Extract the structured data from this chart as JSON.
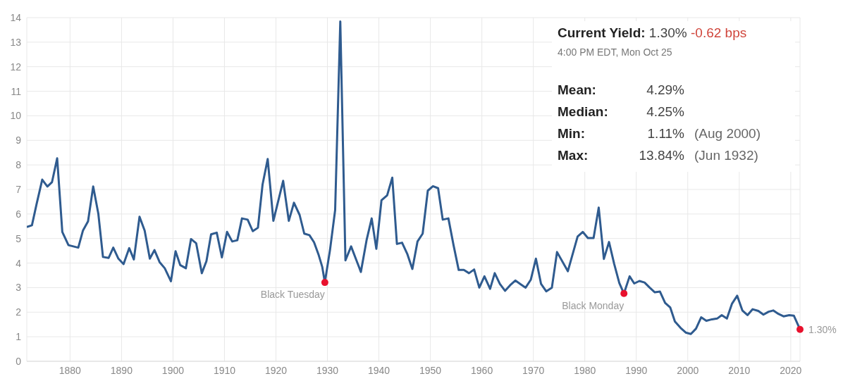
{
  "chart_data": {
    "type": "line",
    "x": [
      1871.6,
      1872.6,
      1873.5,
      1874.6,
      1875.6,
      1876.5,
      1877.5,
      1878.5,
      1879.7,
      1881.6,
      1882.5,
      1883.5,
      1884.5,
      1885.5,
      1886.4,
      1887.5,
      1888.4,
      1889.4,
      1890.4,
      1891.5,
      1892.4,
      1893.5,
      1894.5,
      1895.5,
      1896.4,
      1897.4,
      1898.4,
      1899.6,
      1900.5,
      1901.4,
      1902.5,
      1903.5,
      1904.5,
      1905.6,
      1906.5,
      1907.4,
      1908.5,
      1909.5,
      1910.5,
      1911.5,
      1912.5,
      1913.4,
      1914.5,
      1915.5,
      1916.5,
      1917.4,
      1918.4,
      1919.5,
      1921.4,
      1922.5,
      1923.5,
      1924.6,
      1925.5,
      1926.5,
      1927.4,
      1928.3,
      1929,
      1929.5,
      1930.5,
      1931.5,
      1932.5,
      1933.5,
      1934.6,
      1935.6,
      1936.5,
      1937.6,
      1938.6,
      1939.5,
      1940.5,
      1941.6,
      1942.6,
      1943.5,
      1944.5,
      1945.5,
      1946.5,
      1947.5,
      1948.5,
      1949.5,
      1950.5,
      1951.5,
      1952.4,
      1953.5,
      1954.5,
      1955.5,
      1956.5,
      1957.5,
      1958.5,
      1959.5,
      1960.5,
      1961.6,
      1962.5,
      1963.5,
      1964.5,
      1965.5,
      1966.5,
      1967.6,
      1968.5,
      1969.5,
      1970.5,
      1971.5,
      1972.5,
      1973.6,
      1974.6,
      1976.7,
      1978.6,
      1979.6,
      1980.6,
      1981.7,
      1982.7,
      1983.7,
      1984.7,
      1985.7,
      1986.7,
      1987.6,
      1988.7,
      1989.6,
      1990.6,
      1991.6,
      1992.6,
      1993.6,
      1994.6,
      1995.6,
      1996.6,
      1997.5,
      1998.6,
      1999.6,
      2000.6,
      2001.6,
      2002.6,
      2003.6,
      2004.7,
      2005.7,
      2006.6,
      2007.6,
      2008.6,
      2009.6,
      2010.6,
      2011.6,
      2012.6,
      2013.7,
      2014.7,
      2015.7,
      2016.6,
      2017.6,
      2018.6,
      2019.7,
      2020.6,
      2021.8
    ],
    "series": [
      {
        "color": "#2f5b8f",
        "values": [
          5.47,
          5.54,
          6.4,
          7.4,
          7.12,
          7.3,
          8.27,
          5.27,
          4.73,
          4.63,
          5.32,
          5.7,
          7.12,
          6.01,
          4.25,
          4.21,
          4.63,
          4.18,
          3.96,
          4.61,
          4.15,
          5.89,
          5.32,
          4.18,
          4.53,
          4.04,
          3.79,
          3.26,
          4.48,
          3.92,
          3.79,
          4.98,
          4.81,
          3.59,
          4.08,
          5.17,
          5.24,
          4.23,
          5.27,
          4.88,
          4.93,
          5.82,
          5.77,
          5.3,
          5.44,
          7.2,
          8.24,
          5.72,
          7.35,
          5.72,
          6.46,
          5.96,
          5.2,
          5.14,
          4.85,
          4.33,
          3.84,
          3.21,
          4.53,
          6.16,
          13.84,
          4.11,
          4.68,
          4.13,
          3.64,
          4.93,
          5.82,
          4.58,
          6.56,
          6.76,
          7.48,
          4.78,
          4.83,
          4.38,
          3.76,
          4.88,
          5.2,
          6.95,
          7.13,
          7.05,
          5.77,
          5.82,
          4.73,
          3.72,
          3.72,
          3.59,
          3.74,
          3.0,
          3.46,
          2.95,
          3.59,
          3.15,
          2.87,
          3.1,
          3.29,
          3.13,
          3.0,
          3.32,
          4.18,
          3.15,
          2.85,
          3.0,
          4.45,
          3.67,
          5.08,
          5.27,
          5.02,
          5.02,
          6.26,
          4.17,
          4.86,
          3.97,
          3.19,
          2.76,
          3.46,
          3.17,
          3.27,
          3.21,
          3.0,
          2.81,
          2.84,
          2.38,
          2.19,
          1.62,
          1.36,
          1.17,
          1.11,
          1.33,
          1.79,
          1.65,
          1.71,
          1.74,
          1.88,
          1.74,
          2.35,
          2.67,
          2.07,
          1.88,
          2.12,
          2.05,
          1.9,
          2.02,
          2.07,
          1.93,
          1.83,
          1.88,
          1.86,
          1.3
        ]
      }
    ],
    "xlim": [
      1871.6,
      2021.8
    ],
    "xticks": [
      1880,
      1890,
      1900,
      1910,
      1920,
      1930,
      1940,
      1950,
      1960,
      1970,
      1980,
      1990,
      2000,
      2010,
      2020
    ],
    "ylim": [
      0,
      14
    ],
    "yticks": [
      0,
      1,
      2,
      3,
      4,
      5,
      6,
      7,
      8,
      9,
      10,
      11,
      12,
      13,
      14
    ],
    "grid": true,
    "annotations": [
      "Current Yield: 1.30% -0.62 bps",
      "4:00 PM EDT, Mon Oct 25",
      "Mean: 4.29%",
      "Median: 4.25%",
      "Min: 1.11% (Aug 2000)",
      "Max: 13.84% (Jun 1932)",
      {
        "text": "Black Tuesday",
        "x": 1929.5,
        "y": 3.21
      },
      {
        "text": "Black Monday",
        "x": 1987.6,
        "y": 2.76
      },
      {
        "text": "1.30%",
        "x": 2021.8,
        "y": 1.3
      }
    ]
  }
}
